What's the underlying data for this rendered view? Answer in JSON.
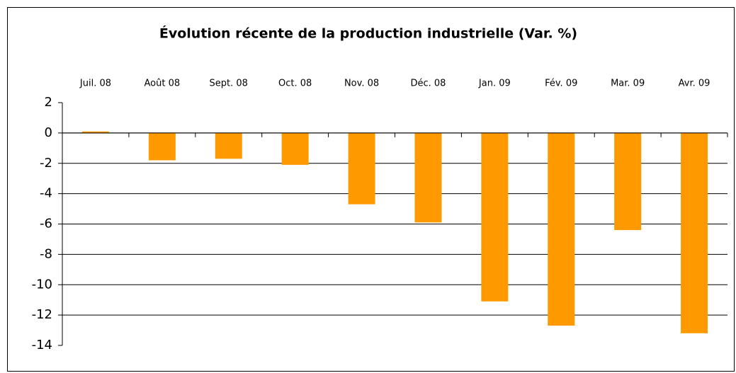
{
  "chart_data": {
    "type": "bar",
    "title": "Évolution récente de la production industrielle (Var. %)",
    "categories": [
      "Juil. 08",
      "Août 08",
      "Sept. 08",
      "Oct. 08",
      "Nov. 08",
      "Déc. 08",
      "Jan. 09",
      "Fév. 09",
      "Mar. 09",
      "Avr. 09"
    ],
    "values": [
      0.1,
      -1.8,
      -1.7,
      -2.1,
      -4.7,
      -5.9,
      -11.1,
      -12.7,
      -6.4,
      -13.2
    ],
    "color": "#ff9900",
    "ylim": [
      -14,
      2
    ],
    "yticks": [
      2,
      0,
      -2,
      -4,
      -6,
      -8,
      -10,
      -12,
      -14
    ],
    "grid": true
  }
}
